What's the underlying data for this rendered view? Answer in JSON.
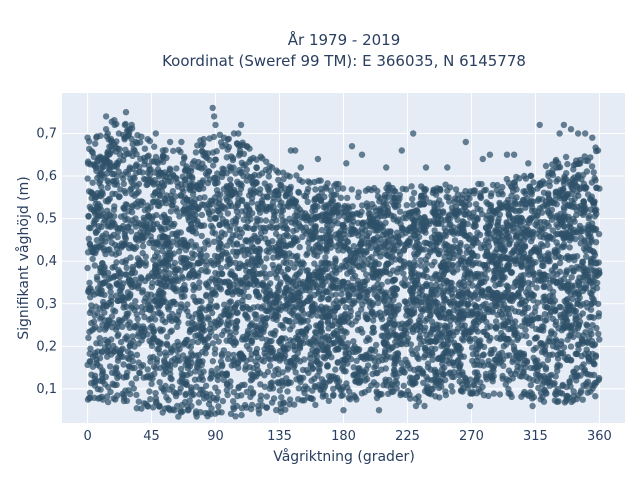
{
  "chart_data": {
    "type": "scatter",
    "title_lines": [
      "År 1979 - 2019",
      "Koordinat (Sweref 99 TM): E 366035, N 6145778"
    ],
    "xlabel": "Vågriktning (grader)",
    "ylabel": "Signifikant våghöjd (m)",
    "xlim": [
      -18,
      378
    ],
    "ylim": [
      0.02,
      0.795
    ],
    "x_ticks": [
      0,
      45,
      90,
      135,
      180,
      225,
      270,
      315,
      360
    ],
    "x_tick_labels": [
      "0",
      "45",
      "90",
      "135",
      "180",
      "225",
      "270",
      "315",
      "360"
    ],
    "y_ticks": [
      0.1,
      0.2,
      0.3,
      0.4,
      0.5,
      0.6,
      0.7
    ],
    "y_tick_labels": [
      "0,1",
      "0,2",
      "0,3",
      "0,4",
      "0,5",
      "0,6",
      "0,7"
    ],
    "grid": true,
    "legend": "none",
    "colors": {
      "marker": "#2e5068",
      "plot_background": "#e5ecf6",
      "grid": "#ffffff",
      "text": "#2a3f5f"
    },
    "series": [
      {
        "description_of_density": "dense band of points covering direction 0–360 degrees",
        "envelope": [
          {
            "x": 0,
            "min": 0.1,
            "max": 0.62
          },
          {
            "x": 20,
            "min": 0.09,
            "max": 0.68
          },
          {
            "x": 45,
            "min": 0.07,
            "max": 0.62
          },
          {
            "x": 60,
            "min": 0.06,
            "max": 0.6
          },
          {
            "x": 90,
            "min": 0.06,
            "max": 0.64
          },
          {
            "x": 110,
            "min": 0.06,
            "max": 0.62
          },
          {
            "x": 135,
            "min": 0.07,
            "max": 0.55
          },
          {
            "x": 180,
            "min": 0.1,
            "max": 0.52
          },
          {
            "x": 225,
            "min": 0.1,
            "max": 0.52
          },
          {
            "x": 270,
            "min": 0.11,
            "max": 0.52
          },
          {
            "x": 315,
            "min": 0.1,
            "max": 0.55
          },
          {
            "x": 340,
            "min": 0.09,
            "max": 0.6
          },
          {
            "x": 360,
            "min": 0.1,
            "max": 0.62
          }
        ],
        "outliers": [
          {
            "x": 0,
            "y": 0.69
          },
          {
            "x": 13,
            "y": 0.74
          },
          {
            "x": 13,
            "y": 0.71
          },
          {
            "x": 19,
            "y": 0.72
          },
          {
            "x": 22,
            "y": 0.7
          },
          {
            "x": 27,
            "y": 0.75
          },
          {
            "x": 31,
            "y": 0.72
          },
          {
            "x": 34,
            "y": 0.68
          },
          {
            "x": 48,
            "y": 0.7
          },
          {
            "x": 53,
            "y": 0.66
          },
          {
            "x": 58,
            "y": 0.68
          },
          {
            "x": 66,
            "y": 0.68
          },
          {
            "x": 88,
            "y": 0.76
          },
          {
            "x": 89,
            "y": 0.74
          },
          {
            "x": 90,
            "y": 0.72
          },
          {
            "x": 96,
            "y": 0.69
          },
          {
            "x": 103,
            "y": 0.7
          },
          {
            "x": 106,
            "y": 0.7
          },
          {
            "x": 108,
            "y": 0.72
          },
          {
            "x": 112,
            "y": 0.67
          },
          {
            "x": 143,
            "y": 0.66
          },
          {
            "x": 146,
            "y": 0.66
          },
          {
            "x": 150,
            "y": 0.62
          },
          {
            "x": 162,
            "y": 0.64
          },
          {
            "x": 182,
            "y": 0.63
          },
          {
            "x": 186,
            "y": 0.67
          },
          {
            "x": 193,
            "y": 0.65
          },
          {
            "x": 210,
            "y": 0.62
          },
          {
            "x": 221,
            "y": 0.66
          },
          {
            "x": 229,
            "y": 0.7
          },
          {
            "x": 238,
            "y": 0.62
          },
          {
            "x": 253,
            "y": 0.62
          },
          {
            "x": 266,
            "y": 0.68
          },
          {
            "x": 278,
            "y": 0.64
          },
          {
            "x": 283,
            "y": 0.65
          },
          {
            "x": 295,
            "y": 0.65
          },
          {
            "x": 300,
            "y": 0.65
          },
          {
            "x": 310,
            "y": 0.63
          },
          {
            "x": 318,
            "y": 0.72
          },
          {
            "x": 332,
            "y": 0.7
          },
          {
            "x": 335,
            "y": 0.72
          },
          {
            "x": 340,
            "y": 0.71
          },
          {
            "x": 345,
            "y": 0.7
          },
          {
            "x": 350,
            "y": 0.7
          },
          {
            "x": 355,
            "y": 0.69
          },
          {
            "x": 359,
            "y": 0.66
          },
          {
            "x": 180,
            "y": 0.05
          },
          {
            "x": 205,
            "y": 0.05
          },
          {
            "x": 231,
            "y": 0.06
          },
          {
            "x": 233,
            "y": 0.07
          },
          {
            "x": 237,
            "y": 0.06
          },
          {
            "x": 269,
            "y": 0.06
          },
          {
            "x": 313,
            "y": 0.06
          },
          {
            "x": 321,
            "y": 0.07
          },
          {
            "x": 36,
            "y": 0.07
          },
          {
            "x": 42,
            "y": 0.06
          },
          {
            "x": 58,
            "y": 0.05
          },
          {
            "x": 63,
            "y": 0.06
          },
          {
            "x": 73,
            "y": 0.06
          },
          {
            "x": 105,
            "y": 0.06
          },
          {
            "x": 120,
            "y": 0.06
          }
        ]
      }
    ]
  }
}
